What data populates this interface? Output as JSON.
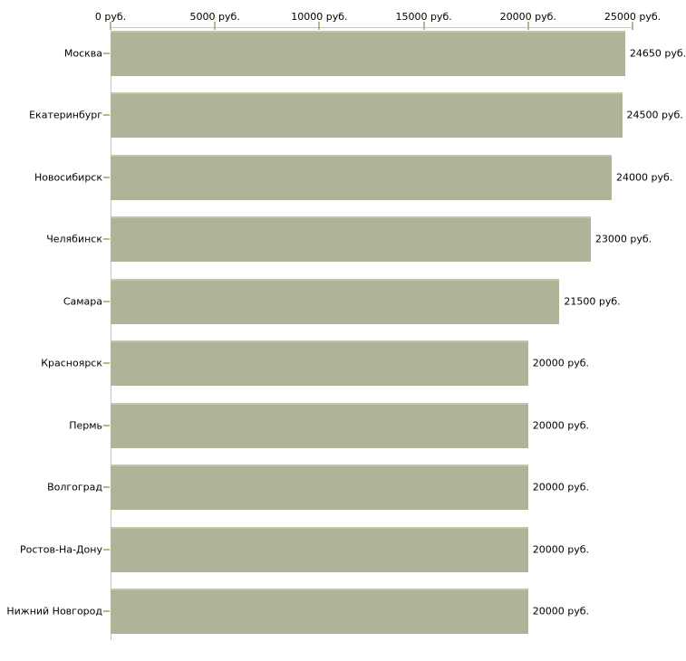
{
  "chart_data": {
    "type": "bar",
    "orientation": "horizontal",
    "title": "",
    "categories": [
      "Москва",
      "Екатеринбург",
      "Новосибирск",
      "Челябинск",
      "Самара",
      "Красноярск",
      "Пермь",
      "Волгоград",
      "Ростов-На-Дону",
      "Нижний Новгород"
    ],
    "values": [
      24650,
      24500,
      24000,
      23000,
      21500,
      20000,
      20000,
      20000,
      20000,
      20000
    ],
    "value_labels": [
      "24650 руб.",
      "24500 руб.",
      "24000 руб.",
      "23000 руб.",
      "21500 руб.",
      "20000 руб.",
      "20000 руб.",
      "20000 руб.",
      "20000 руб.",
      "20000 руб."
    ],
    "x_axis": {
      "position": "top",
      "range": [
        0,
        25000
      ],
      "ticks": [
        0,
        5000,
        10000,
        15000,
        20000,
        25000
      ],
      "tick_labels": [
        "0 руб.",
        "5000 руб.",
        "10000 руб.",
        "15000 руб.",
        "20000 руб.",
        "25000 руб."
      ],
      "unit": "руб."
    },
    "grid": false,
    "legend": false
  },
  "colors": {
    "background": "#ffffff",
    "bar": "#aeb497",
    "bar_top_edge": "#c2c7ac",
    "tick_mark": "#b5b88e",
    "axis_line": "#c3c3c3",
    "text": "#000000"
  }
}
